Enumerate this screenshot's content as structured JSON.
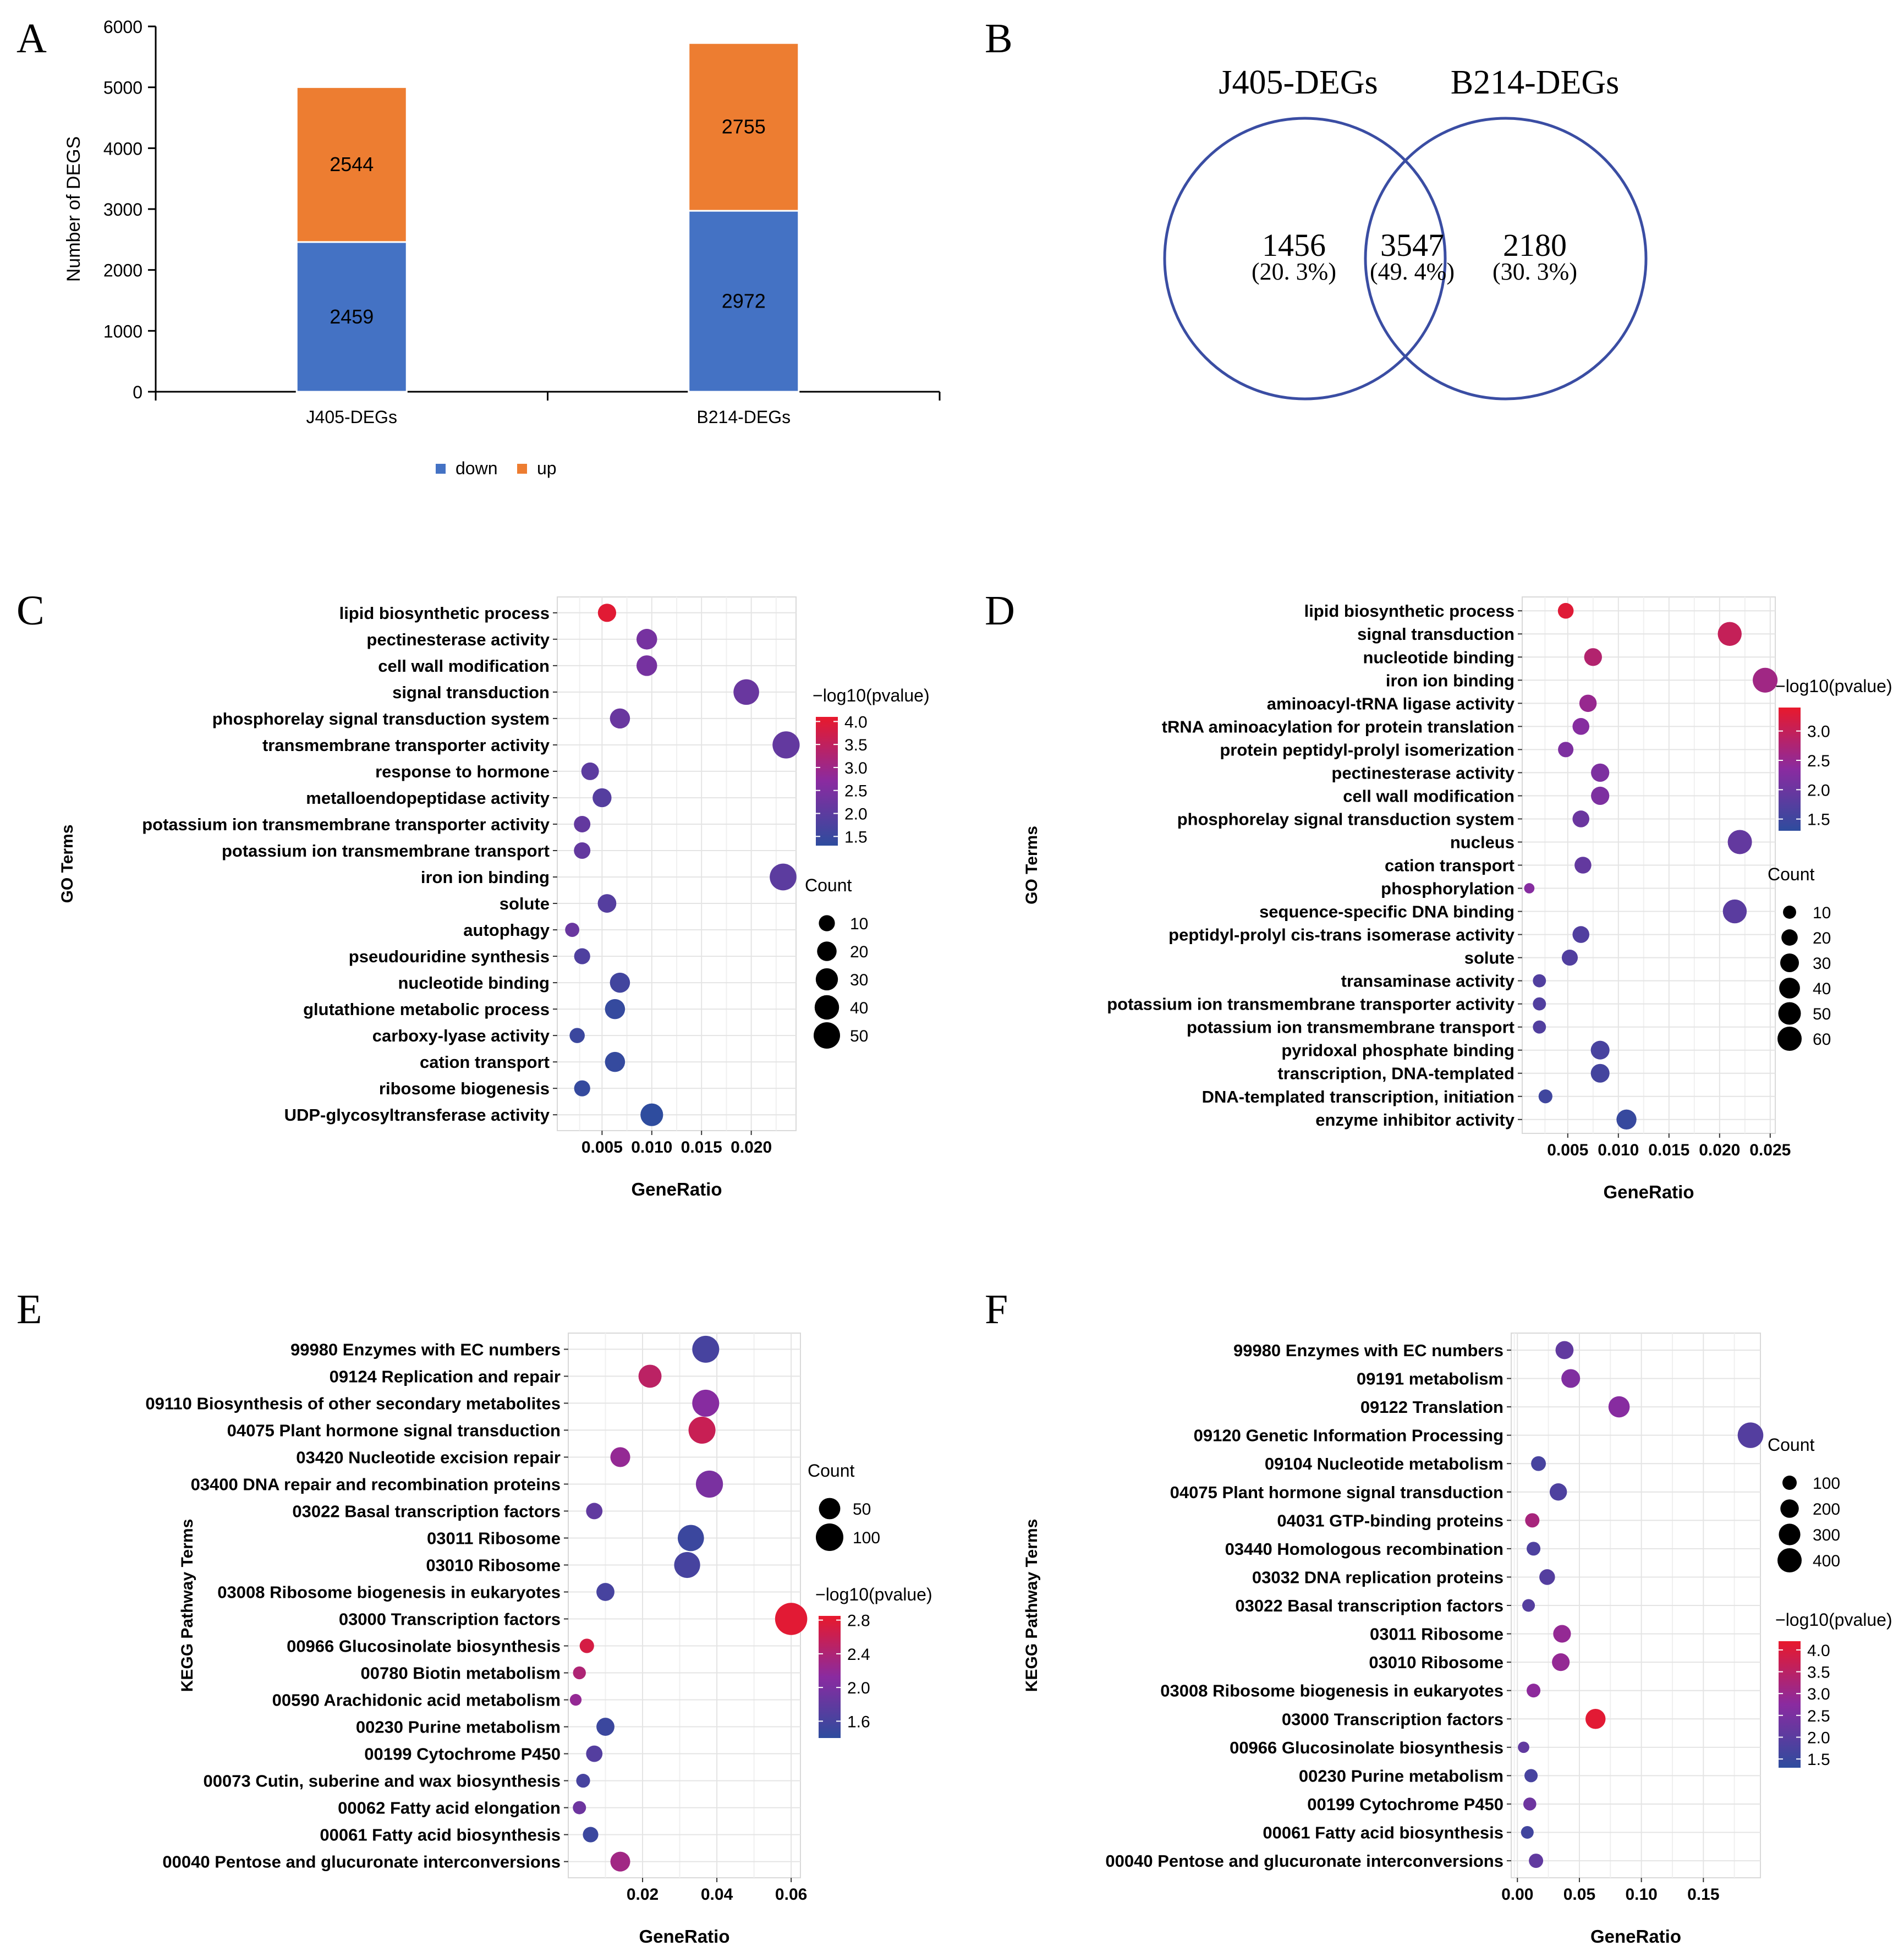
{
  "panels": {
    "A": "A",
    "B": "B",
    "C": "C",
    "D": "D",
    "E": "E",
    "F": "F"
  },
  "go_legend_title": "GO Terms",
  "kegg_legend_title": "KEGG Pathway Terms",
  "chart_data": [
    {
      "panel": "A",
      "type": "bar",
      "stacked": true,
      "ylabel": "Number of DEGS",
      "xlabel": "",
      "ylim": [
        0,
        6000
      ],
      "yticks": [
        0,
        1000,
        2000,
        3000,
        4000,
        5000,
        6000
      ],
      "categories": [
        "J405-DEGs",
        "B214-DEGs"
      ],
      "series": [
        {
          "name": "down",
          "color": "#4472C4",
          "values": [
            2459,
            2972
          ],
          "labels": [
            "2459",
            "2972"
          ]
        },
        {
          "name": "up",
          "color": "#ED7D31",
          "values": [
            2544,
            2755
          ],
          "labels": [
            "2544",
            "2755"
          ]
        }
      ],
      "legend": "bottom"
    },
    {
      "panel": "B",
      "type": "venn",
      "sets": [
        "J405-DEGs",
        "B214-DEGs"
      ],
      "regions": [
        {
          "count": "1456",
          "pct": "(20. 3%)"
        },
        {
          "count": "3547",
          "pct": "(49. 4%)"
        },
        {
          "count": "2180",
          "pct": "(30. 3%)"
        }
      ],
      "circle_color": "#3A4DA3"
    },
    {
      "panel": "C",
      "type": "scatter",
      "ylabel": "GO Terms",
      "xlabel": "GeneRatio",
      "xlim": [
        0.0005,
        0.0245
      ],
      "xticks": [
        0.005,
        0.01,
        0.015,
        0.02
      ],
      "xticklabels": [
        "0.005",
        "0.010",
        "0.015",
        "0.020"
      ],
      "terms": [
        "lipid biosynthetic process",
        "pectinesterase activity",
        "cell wall modification",
        "signal transduction",
        "phosphorelay signal transduction system",
        "transmembrane transporter activity",
        "response to hormone",
        "metalloendopeptidase activity",
        "potassium ion transmembrane transporter activity",
        "potassium ion transmembrane transport",
        "iron ion binding",
        "solute",
        "autophagy",
        "pseudouridine synthesis",
        "nucleotide binding",
        "glutathione metabolic process",
        "carboxy-lyase activity",
        "cation transport",
        "ribosome biogenesis",
        "UDP-glycosyltransferase activity"
      ],
      "points": [
        {
          "x": 0.0055,
          "count": 16,
          "p": 4.0
        },
        {
          "x": 0.0095,
          "count": 24,
          "p": 2.4
        },
        {
          "x": 0.0095,
          "count": 24,
          "p": 2.4
        },
        {
          "x": 0.0195,
          "count": 46,
          "p": 2.2
        },
        {
          "x": 0.0068,
          "count": 22,
          "p": 2.2
        },
        {
          "x": 0.0235,
          "count": 54,
          "p": 2.1
        },
        {
          "x": 0.0038,
          "count": 14,
          "p": 2.0
        },
        {
          "x": 0.005,
          "count": 18,
          "p": 1.9
        },
        {
          "x": 0.003,
          "count": 11,
          "p": 2.1
        },
        {
          "x": 0.003,
          "count": 11,
          "p": 2.1
        },
        {
          "x": 0.0232,
          "count": 52,
          "p": 2.0
        },
        {
          "x": 0.0055,
          "count": 17,
          "p": 1.9
        },
        {
          "x": 0.002,
          "count": 6,
          "p": 2.2
        },
        {
          "x": 0.003,
          "count": 10,
          "p": 1.8
        },
        {
          "x": 0.0068,
          "count": 22,
          "p": 1.6
        },
        {
          "x": 0.0063,
          "count": 22,
          "p": 1.4
        },
        {
          "x": 0.0025,
          "count": 8,
          "p": 1.5
        },
        {
          "x": 0.0063,
          "count": 22,
          "p": 1.4
        },
        {
          "x": 0.003,
          "count": 10,
          "p": 1.4
        },
        {
          "x": 0.01,
          "count": 32,
          "p": 1.3
        }
      ],
      "color_legend": {
        "title": "−log10(pvalue)",
        "ticks": [
          "4.0",
          "3.5",
          "3.0",
          "2.5",
          "2.0",
          "1.5"
        ],
        "range": [
          1.3,
          4.1
        ]
      },
      "size_legend": {
        "title": "Count",
        "values": [
          10,
          20,
          30,
          40,
          50
        ],
        "labels": [
          "10",
          "20",
          "30",
          "40",
          "50"
        ]
      }
    },
    {
      "panel": "D",
      "type": "scatter",
      "ylabel": "GO Terms",
      "xlabel": "GeneRatio",
      "xlim": [
        0.0005,
        0.0255
      ],
      "xticks": [
        0.005,
        0.01,
        0.015,
        0.02,
        0.025
      ],
      "xticklabels": [
        "0.005",
        "0.010",
        "0.015",
        "0.020",
        "0.025"
      ],
      "terms": [
        "lipid biosynthetic process",
        "signal transduction",
        "nucleotide binding",
        "iron ion binding",
        "aminoacyl-tRNA ligase activity",
        "tRNA aminoacylation for protein translation",
        "protein peptidyl-prolyl isomerization",
        "pectinesterase activity",
        "cell wall modification",
        "phosphorelay signal transduction system",
        "nucleus",
        "cation transport",
        "phosphorylation",
        "sequence-specific DNA binding",
        "peptidyl-prolyl cis-trans isomerase activity",
        "solute",
        "transaminase activity",
        "potassium ion transmembrane transporter activity",
        "potassium ion transmembrane transport",
        "pyridoxal phosphate binding",
        "transcription, DNA-templated",
        "DNA-templated transcription, initiation",
        "enzyme inhibitor activity"
      ],
      "points": [
        {
          "x": 0.0048,
          "count": 18,
          "p": 3.3
        },
        {
          "x": 0.021,
          "count": 58,
          "p": 3.0
        },
        {
          "x": 0.0075,
          "count": 26,
          "p": 2.8
        },
        {
          "x": 0.0245,
          "count": 64,
          "p": 2.6
        },
        {
          "x": 0.007,
          "count": 24,
          "p": 2.5
        },
        {
          "x": 0.0063,
          "count": 22,
          "p": 2.3
        },
        {
          "x": 0.0048,
          "count": 17,
          "p": 2.2
        },
        {
          "x": 0.0082,
          "count": 28,
          "p": 2.2
        },
        {
          "x": 0.0082,
          "count": 28,
          "p": 2.2
        },
        {
          "x": 0.0063,
          "count": 22,
          "p": 2.0
        },
        {
          "x": 0.022,
          "count": 60,
          "p": 1.9
        },
        {
          "x": 0.0065,
          "count": 22,
          "p": 1.9
        },
        {
          "x": 0.0012,
          "count": 4,
          "p": 2.3
        },
        {
          "x": 0.0215,
          "count": 58,
          "p": 1.8
        },
        {
          "x": 0.0063,
          "count": 22,
          "p": 1.7
        },
        {
          "x": 0.0052,
          "count": 19,
          "p": 1.7
        },
        {
          "x": 0.0022,
          "count": 10,
          "p": 1.7
        },
        {
          "x": 0.0022,
          "count": 10,
          "p": 1.7
        },
        {
          "x": 0.0022,
          "count": 10,
          "p": 1.7
        },
        {
          "x": 0.0082,
          "count": 30,
          "p": 1.6
        },
        {
          "x": 0.0082,
          "count": 30,
          "p": 1.55
        },
        {
          "x": 0.0028,
          "count": 12,
          "p": 1.5
        },
        {
          "x": 0.0108,
          "count": 36,
          "p": 1.4
        }
      ],
      "color_legend": {
        "title": "−log10(pvalue)",
        "ticks": [
          "3.0",
          "2.5",
          "2.0",
          "1.5"
        ],
        "range": [
          1.3,
          3.4
        ]
      },
      "size_legend": {
        "title": "Count",
        "values": [
          10,
          20,
          30,
          40,
          50,
          60
        ],
        "labels": [
          "10",
          "20",
          "30",
          "40",
          "50",
          "60"
        ]
      }
    },
    {
      "panel": "E",
      "type": "scatter",
      "ylabel": "KEGG Pathway Terms",
      "xlabel": "GeneRatio",
      "xlim": [
        0.0,
        0.0625
      ],
      "xticks": [
        0.02,
        0.04,
        0.06
      ],
      "xticklabels": [
        "0.02",
        "0.04",
        "0.06"
      ],
      "terms": [
        "99980 Enzymes with EC numbers",
        "09124 Replication and repair",
        "09110 Biosynthesis of other secondary metabolites",
        "04075 Plant hormone signal transduction",
        "03420 Nucleotide excision repair",
        "03400 DNA repair and recombination proteins",
        "03022 Basal transcription factors",
        "03011 Ribosome",
        "03010 Ribosome",
        "03008 Ribosome biogenesis in eukaryotes",
        "03000 Transcription factors",
        "00966 Glucosinolate biosynthesis",
        "00780 Biotin metabolism",
        "00590 Arachidonic acid metabolism",
        "00230 Purine metabolism",
        "00199 Cytochrome P450",
        "00073 Cutin, suberine and wax biosynthesis",
        "00062 Fatty acid elongation",
        "00061 Fatty acid biosynthesis",
        "00040 Pentose and glucuronate interconversions"
      ],
      "points": [
        {
          "x": 0.037,
          "count": 95,
          "p": 1.6
        },
        {
          "x": 0.022,
          "count": 62,
          "p": 2.5
        },
        {
          "x": 0.037,
          "count": 95,
          "p": 2.1
        },
        {
          "x": 0.036,
          "count": 95,
          "p": 2.6
        },
        {
          "x": 0.014,
          "count": 40,
          "p": 2.2
        },
        {
          "x": 0.038,
          "count": 96,
          "p": 2.0
        },
        {
          "x": 0.007,
          "count": 22,
          "p": 1.8
        },
        {
          "x": 0.033,
          "count": 88,
          "p": 1.5
        },
        {
          "x": 0.032,
          "count": 86,
          "p": 1.6
        },
        {
          "x": 0.01,
          "count": 30,
          "p": 1.6
        },
        {
          "x": 0.06,
          "count": 150,
          "p": 2.8
        },
        {
          "x": 0.005,
          "count": 14,
          "p": 2.7
        },
        {
          "x": 0.003,
          "count": 9,
          "p": 2.4
        },
        {
          "x": 0.002,
          "count": 6,
          "p": 2.2
        },
        {
          "x": 0.01,
          "count": 30,
          "p": 1.5
        },
        {
          "x": 0.007,
          "count": 22,
          "p": 1.7
        },
        {
          "x": 0.004,
          "count": 12,
          "p": 1.6
        },
        {
          "x": 0.003,
          "count": 10,
          "p": 1.9
        },
        {
          "x": 0.006,
          "count": 18,
          "p": 1.5
        },
        {
          "x": 0.014,
          "count": 40,
          "p": 2.3
        }
      ],
      "color_legend": {
        "title": "−log10(pvalue)",
        "ticks": [
          "2.8",
          "2.4",
          "2.0",
          "1.6"
        ],
        "range": [
          1.4,
          2.85
        ]
      },
      "size_legend": {
        "title": "Count",
        "values": [
          50,
          100
        ],
        "labels": [
          "50",
          "100"
        ]
      }
    },
    {
      "panel": "F",
      "type": "scatter",
      "ylabel": "KEGG Pathway Terms",
      "xlabel": "GeneRatio",
      "xlim": [
        -0.005,
        0.196
      ],
      "xticks": [
        0.0,
        0.05,
        0.1,
        0.15
      ],
      "xticklabels": [
        "0.00",
        "0.05",
        "0.10",
        "0.15"
      ],
      "terms": [
        "99980 Enzymes with EC numbers",
        "09191 metabolism",
        "09122 Translation",
        "09120 Genetic Information Processing",
        "09104 Nucleotide metabolism",
        "04075 Plant hormone signal transduction",
        "04031 GTP-binding proteins",
        "03440 Homologous recombination",
        "03032 DNA replication proteins",
        "03022 Basal transcription factors",
        "03011 Ribosome",
        "03010 Ribosome",
        "03008 Ribosome biogenesis in eukaryotes",
        "03000 Transcription factors",
        "00966 Glucosinolate biosynthesis",
        "00230 Purine metabolism",
        "00199 Cytochrome P450",
        "00061 Fatty acid biosynthesis",
        "00040 Pentose and glucuronate interconversions"
      ],
      "points": [
        {
          "x": 0.038,
          "count": 190,
          "p": 2.1
        },
        {
          "x": 0.043,
          "count": 210,
          "p": 2.6
        },
        {
          "x": 0.082,
          "count": 290,
          "p": 2.7
        },
        {
          "x": 0.188,
          "count": 460,
          "p": 1.9
        },
        {
          "x": 0.017,
          "count": 110,
          "p": 1.7
        },
        {
          "x": 0.033,
          "count": 170,
          "p": 1.8
        },
        {
          "x": 0.012,
          "count": 100,
          "p": 3.2
        },
        {
          "x": 0.013,
          "count": 90,
          "p": 1.8
        },
        {
          "x": 0.024,
          "count": 130,
          "p": 1.9
        },
        {
          "x": 0.009,
          "count": 70,
          "p": 1.9
        },
        {
          "x": 0.036,
          "count": 180,
          "p": 2.9
        },
        {
          "x": 0.035,
          "count": 180,
          "p": 2.9
        },
        {
          "x": 0.013,
          "count": 90,
          "p": 2.8
        },
        {
          "x": 0.063,
          "count": 250,
          "p": 4.1
        },
        {
          "x": 0.005,
          "count": 50,
          "p": 2.1
        },
        {
          "x": 0.011,
          "count": 80,
          "p": 1.7
        },
        {
          "x": 0.01,
          "count": 75,
          "p": 2.3
        },
        {
          "x": 0.008,
          "count": 70,
          "p": 1.6
        },
        {
          "x": 0.015,
          "count": 100,
          "p": 2.1
        }
      ],
      "color_legend": {
        "title": "−log10(pvalue)",
        "ticks": [
          "4.0",
          "3.5",
          "3.0",
          "2.5",
          "2.0",
          "1.5"
        ],
        "range": [
          1.3,
          4.2
        ]
      },
      "size_legend": {
        "title": "Count",
        "values": [
          100,
          200,
          300,
          400
        ],
        "labels": [
          "100",
          "200",
          "300",
          "400"
        ]
      }
    }
  ]
}
